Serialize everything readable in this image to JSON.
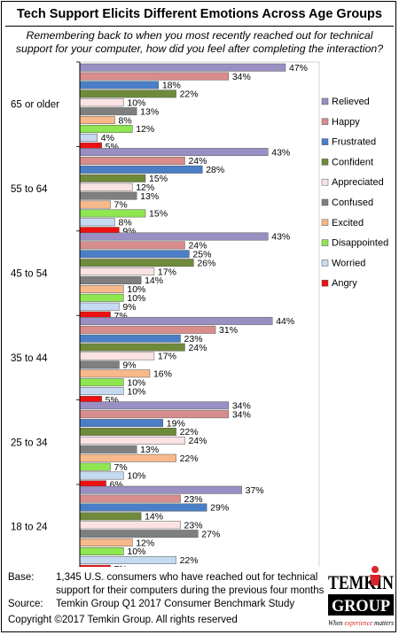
{
  "title": "Tech Support Elicits Different Emotions Across Age Groups",
  "subtitle": "Remembering back to when you most recently reached out for technical support for your computer, how did you feel after completing the interaction?",
  "chart_data": {
    "type": "bar",
    "orientation": "horizontal",
    "categories": [
      "65 or older",
      "55 to 64",
      "45 to 54",
      "35 to 44",
      "25 to 34",
      "18 to 24"
    ],
    "value_suffix": "%",
    "xlim": [
      0,
      50
    ],
    "grid": false,
    "legend_position": "right",
    "series": [
      {
        "name": "Relieved",
        "color": "#9a8fc2",
        "values": [
          47,
          43,
          43,
          44,
          34,
          37
        ]
      },
      {
        "name": "Happy",
        "color": "#d98c8c",
        "values": [
          34,
          24,
          24,
          31,
          34,
          23
        ]
      },
      {
        "name": "Frustrated",
        "color": "#4a7ec7",
        "values": [
          18,
          28,
          25,
          23,
          19,
          29
        ]
      },
      {
        "name": "Confident",
        "color": "#6f8a3a",
        "values": [
          22,
          15,
          26,
          24,
          22,
          14
        ]
      },
      {
        "name": "Appreciated",
        "color": "#fbe3e3",
        "values": [
          10,
          12,
          17,
          17,
          24,
          23
        ]
      },
      {
        "name": "Confused",
        "color": "#7f7f7f",
        "values": [
          13,
          13,
          14,
          9,
          13,
          27
        ]
      },
      {
        "name": "Excited",
        "color": "#f7b98a",
        "values": [
          8,
          7,
          10,
          16,
          22,
          12
        ]
      },
      {
        "name": "Disappointed",
        "color": "#8ee650",
        "values": [
          12,
          15,
          10,
          10,
          7,
          10
        ]
      },
      {
        "name": "Worried",
        "color": "#c5d9f1",
        "values": [
          4,
          8,
          9,
          10,
          10,
          22
        ]
      },
      {
        "name": "Angry",
        "color": "#ee1010",
        "values": [
          5,
          9,
          7,
          5,
          6,
          7
        ]
      }
    ]
  },
  "footer": {
    "base_label": "Base:",
    "base_text": "1,345 U.S. consumers who have reached out for technical support for their computers during the previous four months",
    "source_label": "Source:",
    "source_text": "Temkin Group Q1 2017 Consumer Benchmark Study",
    "copyright": "Copyright ©2017 Temkin Group. All rights reserved"
  },
  "logo": {
    "wordmark_top": "TEMKIN",
    "wordmark_bottom": "GROUP",
    "tagline_pre": "When ",
    "tagline_em": "experience",
    "tagline_post": " matters",
    "accent_color": "#d9262b"
  }
}
